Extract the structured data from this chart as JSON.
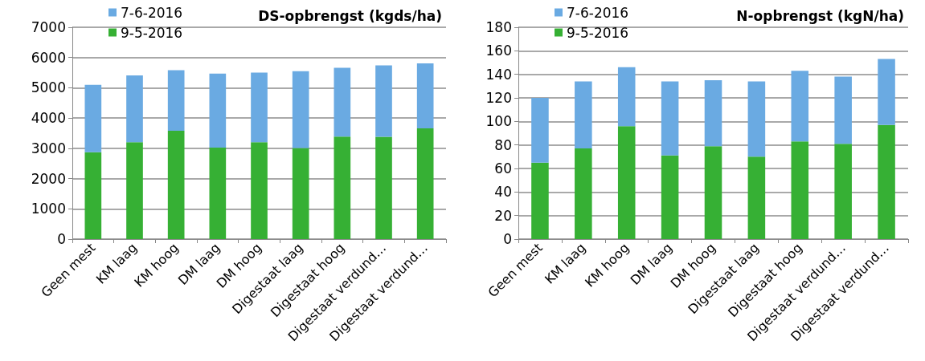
{
  "chart_data": [
    {
      "type": "bar",
      "title": "DS-opbrengst (kgds/ha)",
      "stacked": true,
      "categories": [
        "Geen mest",
        "KM laag",
        "KM hoog",
        "DM laag",
        "DM hoog",
        "Digestaat laag",
        "Digestaat hoog",
        "Digestaat verdund…",
        "Digestaat verdund…"
      ],
      "series": [
        {
          "name": "9-5-2016",
          "color": "#36b034",
          "values": [
            2870,
            3200,
            3580,
            3020,
            3200,
            3010,
            3390,
            3380,
            3660
          ]
        },
        {
          "name": "7-6-2016",
          "color": "#6aaae2",
          "values": [
            2230,
            2210,
            2000,
            2450,
            2300,
            2540,
            2270,
            2360,
            2150
          ]
        }
      ],
      "ylim": [
        0,
        7000
      ],
      "yticks": [
        0,
        1000,
        2000,
        3000,
        4000,
        5000,
        6000,
        7000
      ],
      "grid": "y",
      "legend": "top left"
    },
    {
      "type": "bar",
      "title": "N-opbrengst (kgN/ha)",
      "stacked": true,
      "categories": [
        "Geen mest",
        "KM laag",
        "KM hoog",
        "DM laag",
        "DM hoog",
        "Digestaat laag",
        "Digestaat hoog",
        "Digestaat verdund…",
        "Digestaat verdund…"
      ],
      "series": [
        {
          "name": "9-5-2016",
          "color": "#36b034",
          "values": [
            65,
            77,
            96,
            71,
            79,
            70,
            83,
            81,
            97
          ]
        },
        {
          "name": "7-6-2016",
          "color": "#6aaae2",
          "values": [
            55,
            57,
            50,
            63,
            56,
            64,
            60,
            57,
            56
          ]
        }
      ],
      "ylim": [
        0,
        180
      ],
      "yticks": [
        0,
        20,
        40,
        60,
        80,
        100,
        120,
        140,
        160,
        180
      ],
      "grid": "y",
      "legend": "top left"
    }
  ]
}
